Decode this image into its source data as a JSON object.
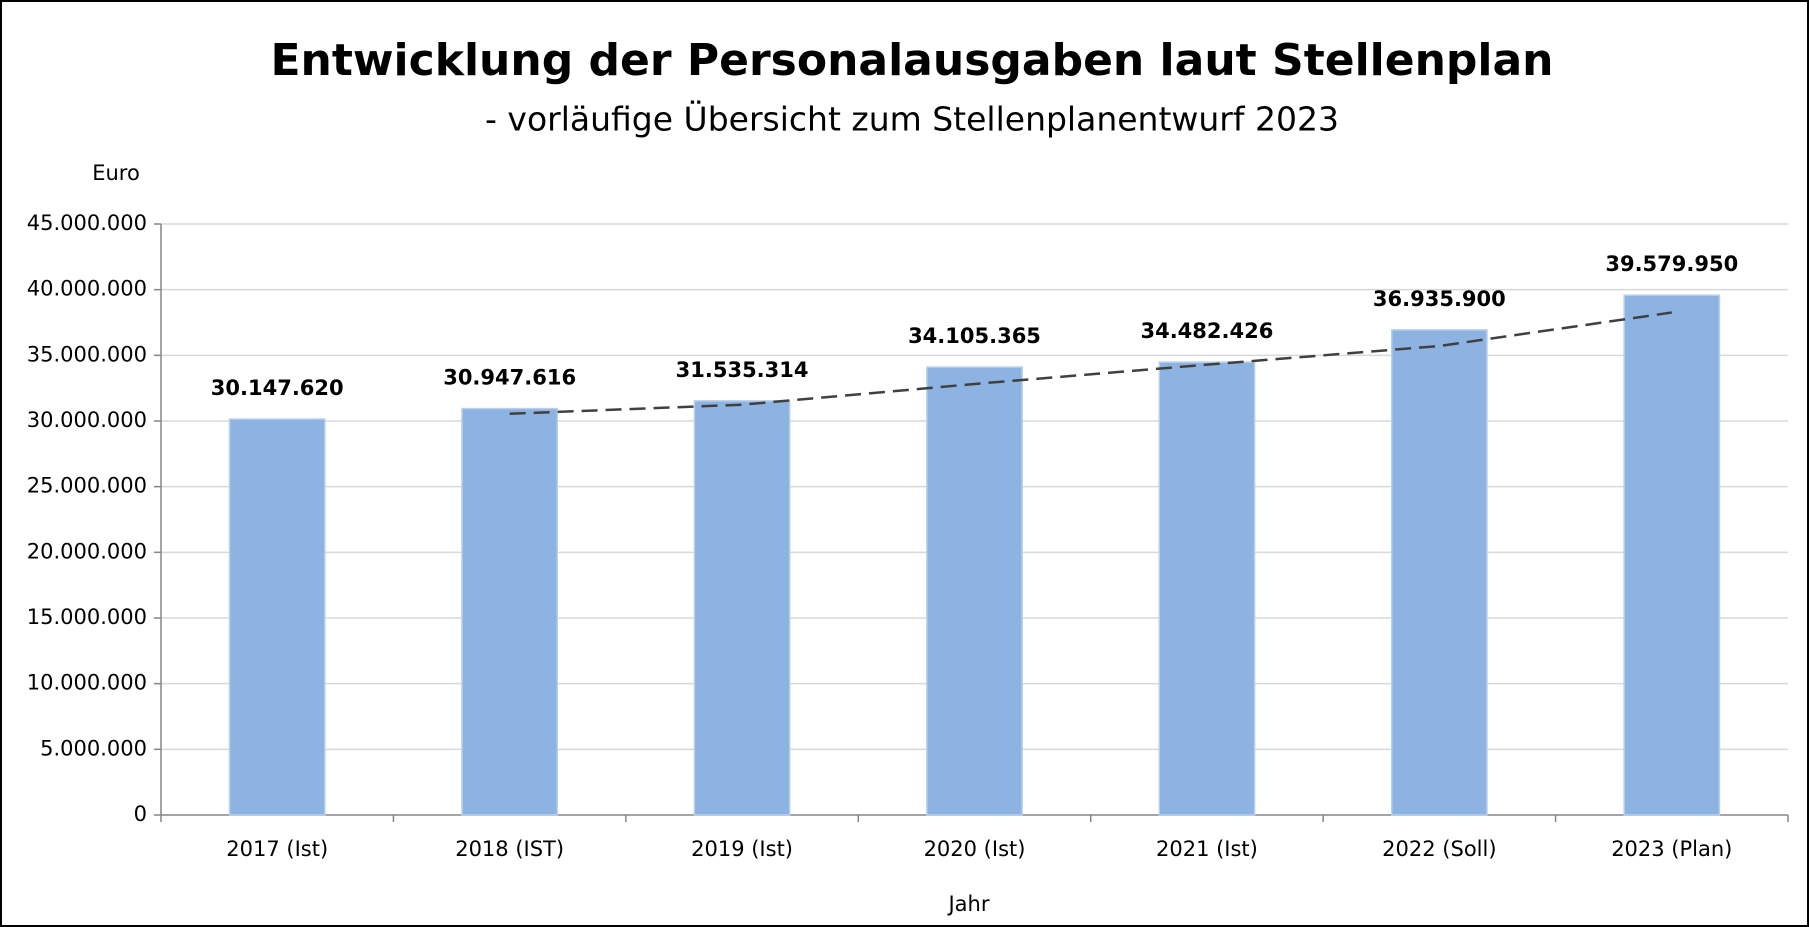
{
  "chart_data": {
    "type": "bar",
    "title": "Entwicklung der Personalausgaben laut Stellenplan",
    "subtitle": "- vorläufige Übersicht zum Stellenplanentwurf 2023",
    "y_label": "Euro",
    "x_label": "Jahr",
    "categories": [
      "2017 (Ist)",
      "2018 (IST)",
      "2019 (Ist)",
      "2020 (Ist)",
      "2021 (Ist)",
      "2022 (Soll)",
      "2023 (Plan)"
    ],
    "values": [
      30147620,
      30947616,
      31535314,
      34105365,
      34482426,
      36935900,
      39579950
    ],
    "value_labels": [
      "30.147.620",
      "30.947.616",
      "31.535.314",
      "34.105.365",
      "34.482.426",
      "36.935.900",
      "39.579.950"
    ],
    "color": "#8db3e2",
    "trendline": {
      "color": "#404040",
      "values": [
        null,
        30550000,
        31240000,
        32820000,
        34290000,
        35710000,
        38260000
      ]
    },
    "ylim": [
      0,
      45000000
    ],
    "yticks": [
      0,
      {
        "value": 5000000,
        "label": "5.000.000"
      },
      {
        "value": 10000000,
        "label": "10.000.000"
      },
      {
        "value": 15000000,
        "label": "15.000.000"
      },
      {
        "value": 20000000,
        "label": "20.000.000"
      },
      {
        "value": 25000000,
        "label": "25.000.000"
      },
      {
        "value": 30000000,
        "label": "30.000.000"
      },
      {
        "value": 35000000,
        "label": "35.000.000"
      },
      {
        "value": 40000000,
        "label": "40.000.000"
      },
      {
        "value": 45000000,
        "label": "45.000.000"
      }
    ],
    "grid": true
  }
}
